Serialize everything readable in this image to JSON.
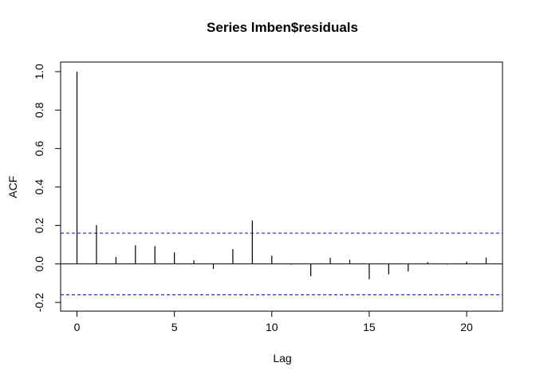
{
  "chart_data": {
    "type": "bar",
    "title": "Series  lmben$residuals",
    "xlabel": "Lag",
    "ylabel": "ACF",
    "xlim": [
      -0.84,
      21.84
    ],
    "ylim": [
      -0.2,
      1.0
    ],
    "x_ticks": [
      0,
      5,
      10,
      15,
      20
    ],
    "y_ticks": [
      -0.2,
      0.0,
      0.2,
      0.4,
      0.6,
      0.8,
      1.0
    ],
    "x_tick_labels": [
      "0",
      "5",
      "10",
      "15",
      "20"
    ],
    "y_tick_labels": [
      "-0.2",
      "0.0",
      "0.2",
      "0.4",
      "0.6",
      "0.8",
      "1.0"
    ],
    "lags": [
      0,
      1,
      2,
      3,
      4,
      5,
      6,
      7,
      8,
      9,
      10,
      11,
      12,
      13,
      14,
      15,
      16,
      17,
      18,
      19,
      20,
      21
    ],
    "acf": [
      1.0,
      0.202,
      0.036,
      0.097,
      0.093,
      0.06,
      0.019,
      -0.026,
      0.077,
      0.226,
      0.043,
      -0.004,
      -0.064,
      0.032,
      0.022,
      -0.079,
      -0.054,
      -0.039,
      0.01,
      -0.003,
      0.012,
      0.033
    ],
    "confidence_bounds": [
      0.16,
      -0.16
    ],
    "zero_line": 0,
    "colors": {
      "bars": "#000000",
      "confidence": "#0000cd",
      "zero_line": "#000000",
      "frame": "#000000"
    },
    "grid": false,
    "legend": "none"
  }
}
